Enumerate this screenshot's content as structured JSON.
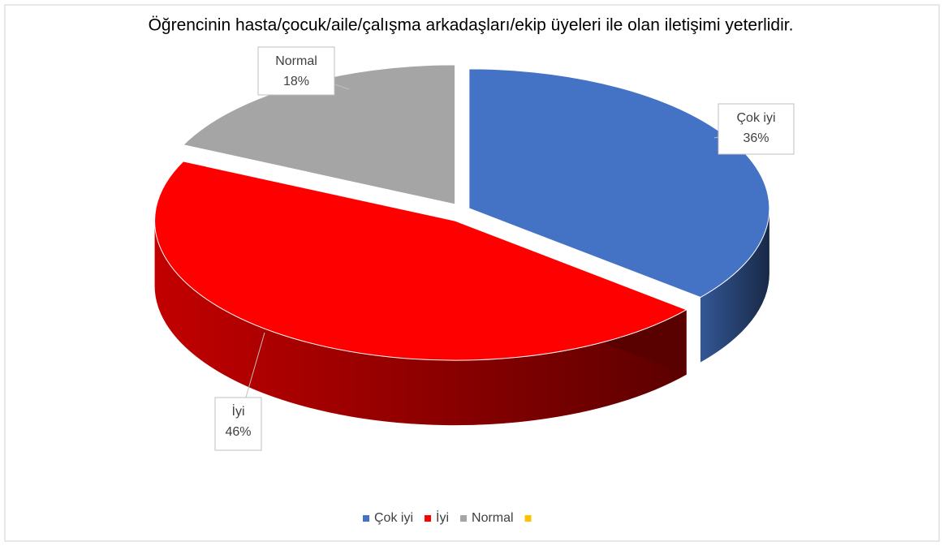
{
  "chart_data": {
    "type": "pie",
    "title": "Öğrencinin hasta/çocuk/aile/çalışma arkadaşları/ekip üyeleri ile olan iletişimi yeterlidir.",
    "categories": [
      "Çok iyi",
      "İyi",
      "Normal",
      null
    ],
    "values": [
      36,
      46,
      18,
      0
    ],
    "value_labels": [
      "36%",
      "46%",
      "18%",
      null
    ],
    "colors": [
      "#4472c4",
      "#ff0000",
      "#a5a5a5",
      "#ffc000"
    ],
    "legend": "bottom"
  }
}
